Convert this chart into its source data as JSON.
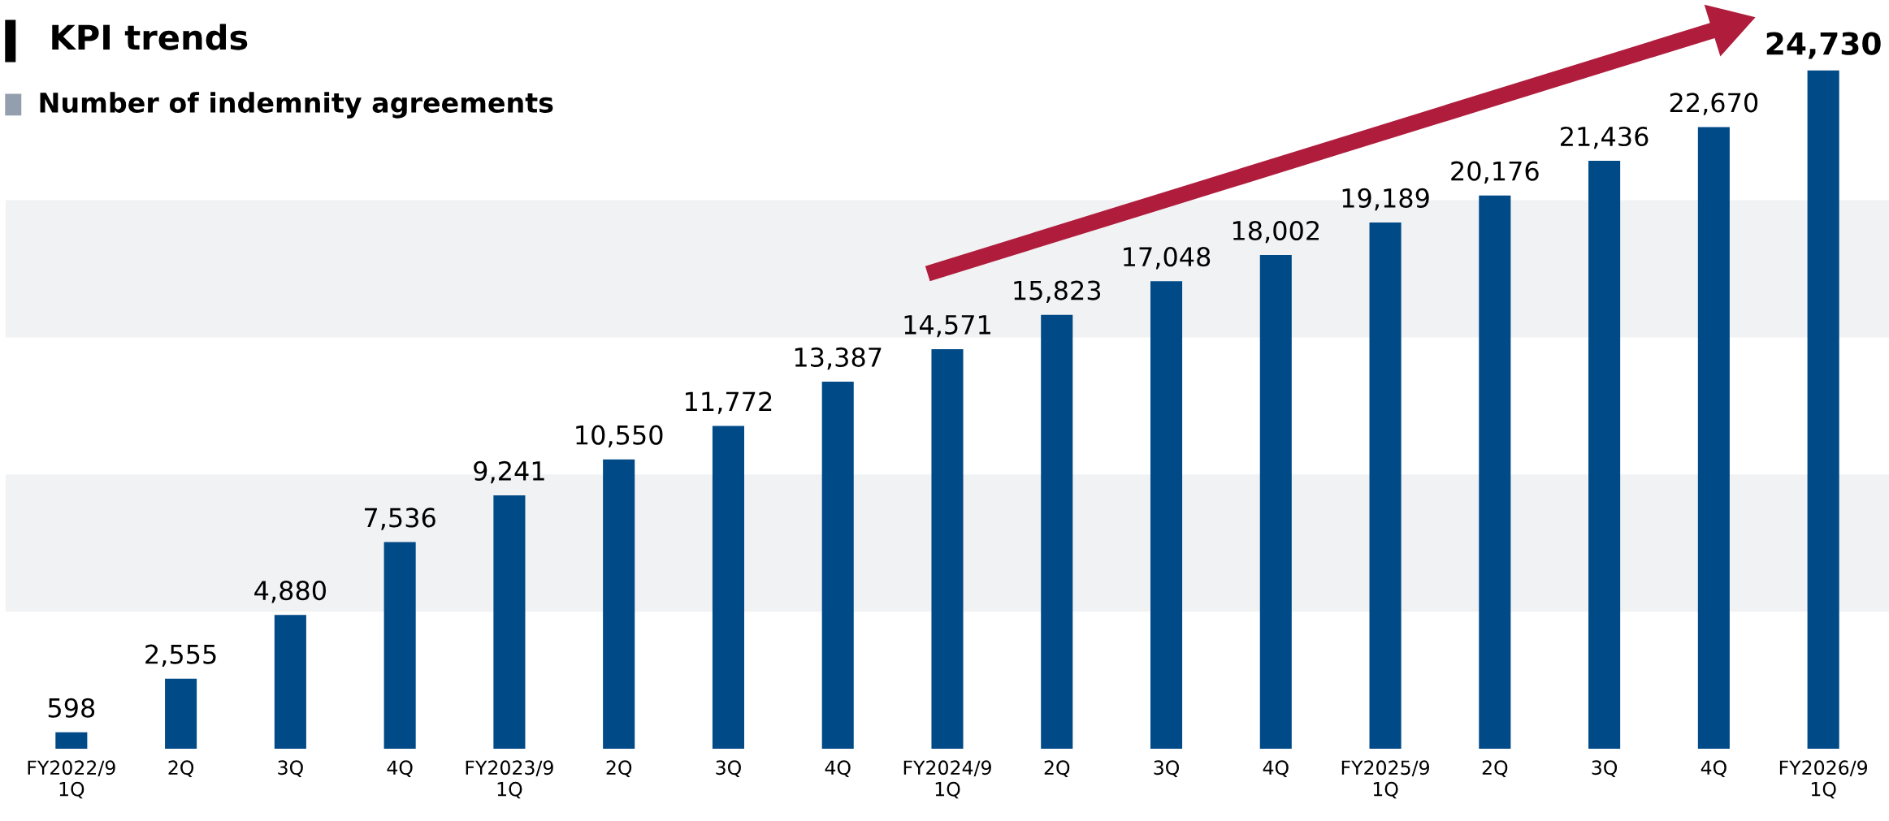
{
  "chart_data": {
    "type": "bar",
    "title": "KPI trends",
    "subtitle": "Number of indemnity agreements",
    "categories": [
      "FY2022/9\n1Q",
      "2Q",
      "3Q",
      "4Q",
      "FY2023/9\n1Q",
      "2Q",
      "3Q",
      "4Q",
      "FY2024/9\n1Q",
      "2Q",
      "3Q",
      "4Q",
      "FY2025/9\n1Q",
      "2Q",
      "3Q",
      "4Q",
      "FY2026/9\n1Q"
    ],
    "values": [
      598,
      2555,
      4880,
      7536,
      9241,
      10550,
      11772,
      13387,
      14571,
      15823,
      17048,
      18002,
      19189,
      20176,
      21436,
      22670,
      24730
    ],
    "value_labels": [
      "598",
      "2,555",
      "4,880",
      "7,536",
      "9,241",
      "10,550",
      "11,772",
      "13,387",
      "14,571",
      "15,823",
      "17,048",
      "18,002",
      "19,189",
      "20,176",
      "21,436",
      "22,670",
      "24,730"
    ],
    "color": "#004a87",
    "tick_labels": "x",
    "grid": false,
    "bands": [
      {
        "axis": "y",
        "from": 5000,
        "to": 10000,
        "color": "#f1f2f3"
      },
      {
        "axis": "y",
        "from": 15000,
        "to": 20000,
        "color": "#f1f2f3"
      }
    ]
  }
}
